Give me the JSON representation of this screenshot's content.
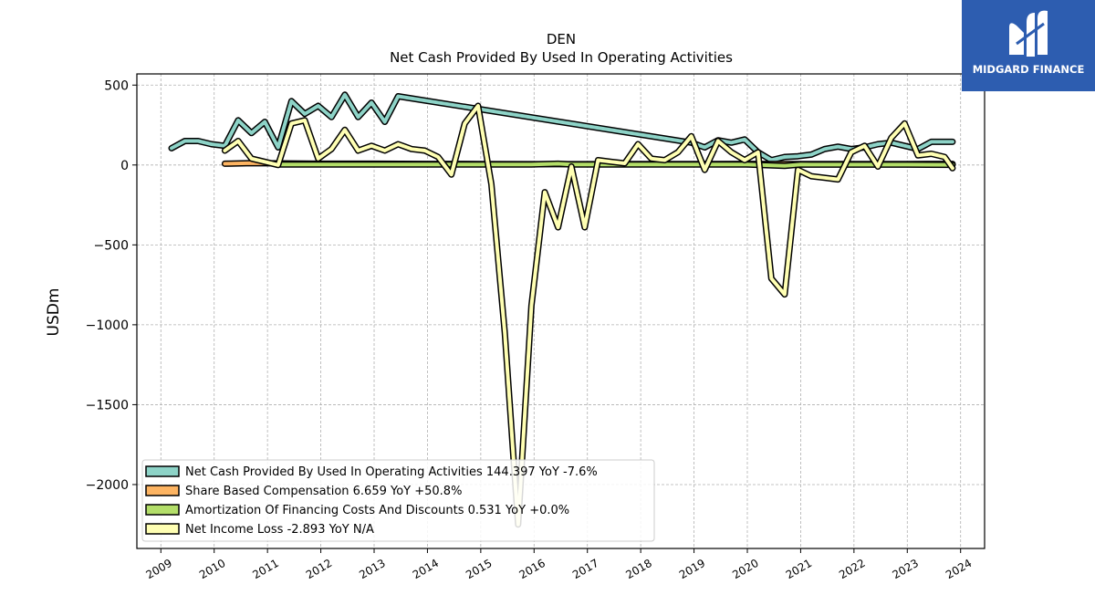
{
  "brand": {
    "name": "MIDGARD FINANCE",
    "logo_icon": "midgard-m-icon",
    "color": "#2d5db0"
  },
  "chart_data": {
    "type": "line",
    "title": "DEN",
    "subtitle": "Net Cash Provided By Used In Operating Activities",
    "ylabel": "USDm",
    "xlabel": "",
    "xlim": [
      2008.55,
      2024.45
    ],
    "ylim": [
      -2400,
      570
    ],
    "x_ticks": [
      2009,
      2010,
      2011,
      2012,
      2013,
      2014,
      2015,
      2016,
      2017,
      2018,
      2019,
      2020,
      2021,
      2022,
      2023,
      2024
    ],
    "y_ticks": [
      500,
      0,
      -500,
      -1000,
      -1500,
      -2000
    ],
    "y_tick_labels": [
      "500",
      "0",
      "−500",
      "−1000",
      "−1500",
      "−2000"
    ],
    "grid": true,
    "legend_position": "lower-left",
    "series": [
      {
        "name": "Net Cash Provided By Used In Operating Activities",
        "legend": "Net Cash Provided By Used In Operating Activities  144.397 YoY -7.6%",
        "color": "#8dd3c7",
        "x": [
          2009.2,
          2009.45,
          2009.7,
          2009.95,
          2010.2,
          2010.45,
          2010.7,
          2010.95,
          2011.2,
          2011.45,
          2011.7,
          2011.95,
          2012.2,
          2012.45,
          2012.7,
          2012.95,
          2013.2,
          2013.45,
          2018.95,
          2019.2,
          2019.45,
          2019.7,
          2019.95,
          2020.2,
          2020.45,
          2020.7,
          2020.95,
          2021.2,
          2021.45,
          2021.7,
          2021.95,
          2022.2,
          2022.45,
          2022.7,
          2022.95,
          2023.2,
          2023.45,
          2023.85
        ],
        "y": [
          105,
          150,
          150,
          130,
          120,
          280,
          200,
          270,
          110,
          400,
          320,
          370,
          300,
          440,
          300,
          390,
          270,
          430,
          140,
          110,
          155,
          140,
          160,
          80,
          30,
          50,
          55,
          65,
          100,
          115,
          100,
          110,
          130,
          140,
          120,
          100,
          145,
          145
        ]
      },
      {
        "name": "Share Based Compensation",
        "legend": "Share Based Compensation  6.659 YoY +50.8%",
        "color": "#fdb462",
        "x": [
          2010.2,
          2010.7,
          2011.2,
          2012.0,
          2013.0,
          2014.0,
          2015.0,
          2016.0,
          2017.0,
          2018.0,
          2019.0,
          2020.0,
          2021.0,
          2022.0,
          2023.0,
          2023.85
        ],
        "y": [
          8,
          12,
          10,
          8,
          8,
          7,
          6,
          5,
          5,
          6,
          6,
          7,
          6,
          6,
          6,
          7
        ]
      },
      {
        "name": "Amortization Of Financing Costs And Discounts",
        "legend": "Amortization Of Financing Costs And Discounts  0.531 YoY +0.0%",
        "color": "#b3de69",
        "x": [
          2011.2,
          2012.0,
          2013.0,
          2014.0,
          2015.0,
          2015.95,
          2016.45,
          2016.7,
          2017.0,
          2018.0,
          2019.0,
          2020.0,
          2020.7,
          2021.0,
          2022.0,
          2023.0,
          2023.85
        ],
        "y": [
          3,
          3,
          3,
          3,
          3,
          3,
          8,
          3,
          3,
          3,
          3,
          3,
          -5,
          3,
          2,
          2,
          1
        ]
      },
      {
        "name": "Net Income Loss",
        "legend": "Net Income Loss  -2.893 YoY N/A",
        "color": "#ffffb3",
        "x": [
          2010.2,
          2010.45,
          2010.7,
          2010.95,
          2011.2,
          2011.45,
          2011.7,
          2011.95,
          2012.2,
          2012.45,
          2012.7,
          2012.95,
          2013.2,
          2013.45,
          2013.7,
          2013.95,
          2014.2,
          2014.45,
          2014.7,
          2014.95,
          2015.2,
          2015.45,
          2015.7,
          2015.95,
          2016.2,
          2016.45,
          2016.7,
          2016.95,
          2017.2,
          2017.45,
          2017.7,
          2017.95,
          2018.2,
          2018.45,
          2018.7,
          2018.95,
          2019.2,
          2019.45,
          2019.7,
          2019.95,
          2020.2,
          2020.45,
          2020.7,
          2020.95,
          2021.2,
          2021.45,
          2021.7,
          2021.95,
          2022.2,
          2022.45,
          2022.7,
          2022.95,
          2023.2,
          2023.45,
          2023.7,
          2023.85
        ],
        "y": [
          90,
          150,
          40,
          20,
          0,
          260,
          280,
          40,
          100,
          220,
          90,
          120,
          90,
          130,
          100,
          90,
          50,
          -60,
          260,
          370,
          -120,
          -1050,
          -2250,
          -880,
          -170,
          -390,
          -10,
          -390,
          30,
          20,
          10,
          130,
          40,
          30,
          80,
          180,
          -30,
          150,
          80,
          30,
          80,
          -710,
          -810,
          -30,
          -70,
          -80,
          -90,
          80,
          120,
          -10,
          170,
          260,
          60,
          70,
          50,
          -20
        ]
      }
    ]
  }
}
